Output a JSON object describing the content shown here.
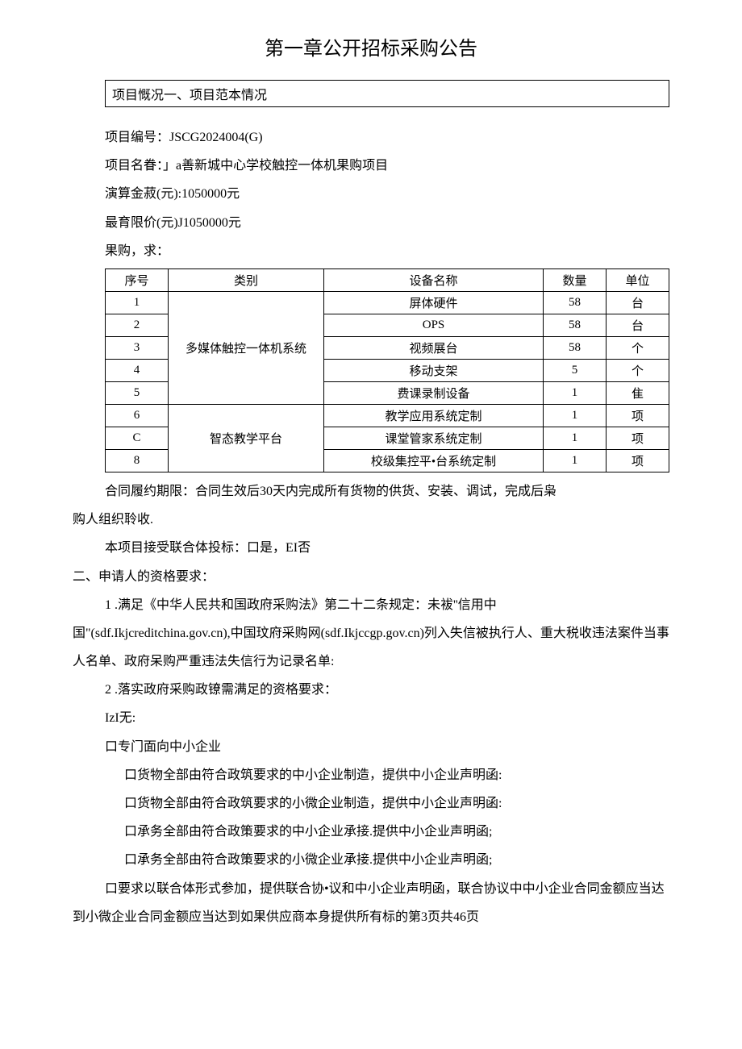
{
  "title": "第一章公开招标采购公告",
  "section_box": "项目慨况一、项目范本情况",
  "fields": {
    "project_no_label": "项目编号：JSCG2024004(G)",
    "project_name_label": "项目名眷：」a善新城中心学校触控一体机果购项目",
    "budget_label": "演算金菽(元):1050000元",
    "limit_label": "最育限价(元)J1050000元",
    "purchase_req_label": "果购，求："
  },
  "table": {
    "headers": {
      "seq": "序号",
      "cat": "类别",
      "name": "设备名称",
      "qty": "数量",
      "unit": "单位"
    },
    "rows": [
      {
        "seq": "1",
        "cat": "多媒体触控一体机系统",
        "name": "屏体硬件",
        "qty": "58",
        "unit": "台"
      },
      {
        "seq": "2",
        "name": "OPS",
        "qty": "58",
        "unit": "台"
      },
      {
        "seq": "3",
        "name": "视频展台",
        "qty": "58",
        "unit": "个"
      },
      {
        "seq": "4",
        "name": "移动支架",
        "qty": "5",
        "unit": "个"
      },
      {
        "seq": "5",
        "name": "费课录制设备",
        "qty": "1",
        "unit": "隹"
      },
      {
        "seq": "6",
        "cat": "智态教学平台",
        "name": "教学应用系统定制",
        "qty": "1",
        "unit": "项"
      },
      {
        "seq": "C",
        "name": "课堂管家系统定制",
        "qty": "1",
        "unit": "项"
      },
      {
        "seq": "8",
        "name": "校级集控平•台系统定制",
        "qty": "1",
        "unit": "项"
      }
    ]
  },
  "paras": {
    "contract_period": "合同履约期限：合同生效后30天内完成所有货物的供货、安装、调试，完成后枭",
    "contract_period2": "购人组织聆收.",
    "consortium": "本项目接受联合体投标：口是，EI否",
    "section2_title": "二、申请人的资格要求：",
    "req1": "1 .满足《中华人民共和国政府采购法》第二十二条规定：未袚''信用中",
    "req1_cont": "国\"(sdf.Ikjcreditchina.gov.cn),中国玟府采购网(sdf.Ikjccgp.gov.cn)列入失信被执行人、重大税收违法案件当事人名单、政府呆购严重违法失信行为记录名单:",
    "req2": "2         .落实政府采购政镣需满足的资格要求：",
    "req2_none": "IzI无:",
    "req2_sme": "口专门面向中小企业",
    "req2_sme1": "口货物全部由符合政筑要求的中小企业制造，提供中小企业声明函:",
    "req2_sme2": "口货物全部由符合政筑要求的小微企业制造，提供中小企业声明函:",
    "req2_sme3": "口承务全部由符合政策要求的中小企业承接.提供中小企业声明函;",
    "req2_sme4": "口承务全部由符合政策要求的小微企业承接.提供中小企业声明函;",
    "req2_union": "口要求以联合体形式参加，提供联合协•议和中小企业声明函，联合协议中中小企业合同金额应当达到小微企业合同金额应当达到如果供应商本身提供所有标的第3页共46页"
  }
}
